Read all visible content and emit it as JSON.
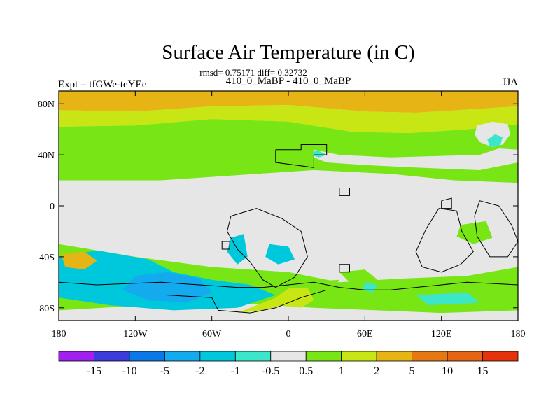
{
  "chart_data": {
    "type": "heatmap",
    "title": "Surface Air Temperature (in C)",
    "stats": "rmsd= 0.75171 diff= 0.32732",
    "case_label": "410_0_MaBP - 410_0_MaBP",
    "expt_label": "Expt = tfGWe-teYEe",
    "season": "JJA",
    "projection": "cylindrical equidistant",
    "xlim": [
      -180,
      180
    ],
    "ylim": [
      -90,
      90
    ],
    "x_ticks": [
      {
        "value": -180,
        "label": "180"
      },
      {
        "value": -120,
        "label": "120W"
      },
      {
        "value": -60,
        "label": "60W"
      },
      {
        "value": 0,
        "label": "0"
      },
      {
        "value": 60,
        "label": "60E"
      },
      {
        "value": 120,
        "label": "120E"
      },
      {
        "value": 180,
        "label": "180"
      }
    ],
    "y_ticks": [
      {
        "value": 80,
        "label": "80N"
      },
      {
        "value": 40,
        "label": "40N"
      },
      {
        "value": 0,
        "label": "0"
      },
      {
        "value": -40,
        "label": "40S"
      },
      {
        "value": -80,
        "label": "80S"
      }
    ],
    "colorbar": {
      "levels": [
        -15,
        -10,
        -5,
        -2,
        -1,
        -0.5,
        0.5,
        1,
        2,
        5,
        10,
        15
      ],
      "labels": [
        "-15",
        "-10",
        "-5",
        "-2",
        "-1",
        "-0.5",
        "0.5",
        "1",
        "2",
        "5",
        "10",
        "15"
      ],
      "colors": [
        "#a020f0",
        "#3c3cdc",
        "#0a78e6",
        "#14aaee",
        "#00c8dc",
        "#3ce6c8",
        "#e6e6e6",
        "#78e614",
        "#c8e614",
        "#e6b414",
        "#e67814",
        "#e66414",
        "#e6320a"
      ]
    },
    "regions": [
      {
        "bin": 9,
        "pts": [
          [
            -180,
            90
          ],
          [
            180,
            90
          ],
          [
            180,
            78
          ],
          [
            100,
            73
          ],
          [
            60,
            74
          ],
          [
            0,
            79
          ],
          [
            -60,
            78
          ],
          [
            -120,
            74
          ],
          [
            -180,
            75
          ]
        ]
      },
      {
        "bin": 8,
        "pts": [
          [
            -180,
            75
          ],
          [
            -120,
            74
          ],
          [
            -60,
            78
          ],
          [
            0,
            79
          ],
          [
            60,
            74
          ],
          [
            100,
            73
          ],
          [
            180,
            78
          ],
          [
            180,
            64
          ],
          [
            140,
            60
          ],
          [
            95,
            57
          ],
          [
            50,
            58
          ],
          [
            0,
            66
          ],
          [
            -60,
            68
          ],
          [
            -120,
            63
          ],
          [
            -180,
            62
          ]
        ]
      },
      {
        "bin": 7,
        "pts": [
          [
            -180,
            62
          ],
          [
            -120,
            63
          ],
          [
            -60,
            68
          ],
          [
            0,
            66
          ],
          [
            50,
            58
          ],
          [
            95,
            57
          ],
          [
            140,
            60
          ],
          [
            180,
            64
          ],
          [
            180,
            18
          ],
          [
            130,
            20
          ],
          [
            80,
            25
          ],
          [
            20,
            28
          ],
          [
            -40,
            24
          ],
          [
            -100,
            20
          ],
          [
            -180,
            20
          ]
        ]
      },
      {
        "bin": 6,
        "pts": [
          [
            -180,
            20
          ],
          [
            -100,
            20
          ],
          [
            -40,
            24
          ],
          [
            20,
            28
          ],
          [
            80,
            25
          ],
          [
            130,
            20
          ],
          [
            180,
            18
          ],
          [
            180,
            -48
          ],
          [
            140,
            -55
          ],
          [
            90,
            -57
          ],
          [
            40,
            -60
          ],
          [
            0,
            -52
          ],
          [
            -60,
            -48
          ],
          [
            -120,
            -40
          ],
          [
            -180,
            -30
          ]
        ]
      },
      {
        "bin": 7,
        "pts": [
          [
            -180,
            -30
          ],
          [
            -120,
            -40
          ],
          [
            -60,
            -48
          ],
          [
            0,
            -52
          ],
          [
            40,
            -60
          ],
          [
            90,
            -57
          ],
          [
            140,
            -55
          ],
          [
            180,
            -48
          ],
          [
            180,
            -90
          ],
          [
            -180,
            -90
          ]
        ]
      },
      {
        "bin": 6,
        "pts": [
          [
            -180,
            -82
          ],
          [
            -60,
            -75
          ],
          [
            20,
            -80
          ],
          [
            120,
            -84
          ],
          [
            180,
            -82
          ],
          [
            180,
            -90
          ],
          [
            -180,
            -90
          ]
        ]
      },
      {
        "bin": 6,
        "pts": [
          [
            20,
            44
          ],
          [
            40,
            40
          ],
          [
            80,
            38
          ],
          [
            150,
            40
          ],
          [
            165,
            45
          ],
          [
            180,
            44
          ],
          [
            180,
            34
          ],
          [
            150,
            28
          ],
          [
            100,
            30
          ],
          [
            60,
            32
          ],
          [
            30,
            34
          ],
          [
            20,
            38
          ]
        ]
      },
      {
        "bin": 6,
        "pts": [
          [
            148,
            63
          ],
          [
            160,
            66
          ],
          [
            172,
            64
          ],
          [
            174,
            56
          ],
          [
            168,
            48
          ],
          [
            160,
            46
          ],
          [
            150,
            50
          ],
          [
            146,
            56
          ]
        ]
      },
      {
        "bin": 5,
        "pts": [
          [
            156,
            52
          ],
          [
            162,
            56
          ],
          [
            168,
            54
          ],
          [
            166,
            47
          ],
          [
            158,
            46
          ]
        ]
      },
      {
        "bin": 5,
        "pts": [
          [
            22,
            44
          ],
          [
            30,
            40
          ],
          [
            24,
            38
          ],
          [
            18,
            40
          ]
        ]
      },
      {
        "bin": 4,
        "pts": [
          [
            -180,
            -40
          ],
          [
            -150,
            -35
          ],
          [
            -110,
            -42
          ],
          [
            -90,
            -52
          ],
          [
            -60,
            -58
          ],
          [
            -30,
            -62
          ],
          [
            -10,
            -70
          ],
          [
            -40,
            -80
          ],
          [
            -90,
            -82
          ],
          [
            -140,
            -78
          ],
          [
            -180,
            -72
          ]
        ]
      },
      {
        "bin": 3,
        "pts": [
          [
            -120,
            -55
          ],
          [
            -95,
            -52
          ],
          [
            -70,
            -57
          ],
          [
            -60,
            -68
          ],
          [
            -80,
            -76
          ],
          [
            -110,
            -74
          ],
          [
            -130,
            -66
          ]
        ]
      },
      {
        "bin": 9,
        "pts": [
          [
            -178,
            -38
          ],
          [
            -160,
            -36
          ],
          [
            -150,
            -43
          ],
          [
            -160,
            -50
          ],
          [
            -175,
            -48
          ]
        ]
      },
      {
        "bin": 4,
        "pts": [
          [
            -45,
            -25
          ],
          [
            -35,
            -22
          ],
          [
            -32,
            -40
          ],
          [
            -40,
            -46
          ],
          [
            -48,
            -36
          ]
        ]
      },
      {
        "bin": 4,
        "pts": [
          [
            -15,
            -30
          ],
          [
            0,
            -32
          ],
          [
            5,
            -42
          ],
          [
            -8,
            -46
          ],
          [
            -18,
            -40
          ]
        ]
      },
      {
        "bin": 7,
        "pts": [
          [
            135,
            -15
          ],
          [
            155,
            -12
          ],
          [
            160,
            -25
          ],
          [
            145,
            -30
          ],
          [
            132,
            -24
          ]
        ]
      },
      {
        "bin": 7,
        "pts": [
          [
            40,
            -52
          ],
          [
            60,
            -50
          ],
          [
            70,
            -58
          ],
          [
            50,
            -62
          ]
        ]
      },
      {
        "bin": 5,
        "pts": [
          [
            60,
            -60
          ],
          [
            70,
            -62
          ],
          [
            66,
            -68
          ],
          [
            58,
            -66
          ]
        ]
      },
      {
        "bin": 7,
        "pts": [
          [
            10,
            -60
          ],
          [
            40,
            -58
          ],
          [
            30,
            -72
          ],
          [
            5,
            -75
          ],
          [
            -5,
            -68
          ]
        ]
      },
      {
        "bin": 8,
        "pts": [
          [
            0,
            -65
          ],
          [
            15,
            -64
          ],
          [
            20,
            -74
          ],
          [
            10,
            -80
          ],
          [
            -5,
            -78
          ],
          [
            -20,
            -82
          ],
          [
            -40,
            -84
          ],
          [
            -10,
            -72
          ]
        ]
      },
      {
        "bin": 5,
        "pts": [
          [
            100,
            -70
          ],
          [
            140,
            -68
          ],
          [
            150,
            -76
          ],
          [
            110,
            -78
          ]
        ]
      }
    ],
    "land_outlines": [
      {
        "name": "north-land-1",
        "pts": [
          [
            -10,
            44
          ],
          [
            10,
            44
          ],
          [
            10,
            48
          ],
          [
            30,
            48
          ],
          [
            30,
            40
          ],
          [
            20,
            40
          ],
          [
            20,
            30
          ],
          [
            -10,
            34
          ],
          [
            -10,
            38
          ]
        ]
      },
      {
        "name": "north-land-2",
        "pts": [
          [
            40,
            14
          ],
          [
            48,
            14
          ],
          [
            48,
            8
          ],
          [
            40,
            8
          ]
        ]
      },
      {
        "name": "south-land-1",
        "pts": [
          [
            -45,
            -8
          ],
          [
            -25,
            -2
          ],
          [
            -5,
            -10
          ],
          [
            10,
            -20
          ],
          [
            15,
            -40
          ],
          [
            5,
            -56
          ],
          [
            -10,
            -64
          ],
          [
            -20,
            -58
          ],
          [
            -30,
            -44
          ],
          [
            -40,
            -34
          ],
          [
            -48,
            -20
          ]
        ]
      },
      {
        "name": "south-land-2",
        "pts": [
          [
            -52,
            -28
          ],
          [
            -46,
            -28
          ],
          [
            -46,
            -34
          ],
          [
            -52,
            -34
          ]
        ]
      },
      {
        "name": "south-land-3",
        "pts": [
          [
            40,
            -46
          ],
          [
            48,
            -46
          ],
          [
            48,
            -52
          ],
          [
            40,
            -52
          ]
        ]
      },
      {
        "name": "south-land-4",
        "pts": [
          [
            118,
            -2
          ],
          [
            132,
            -4
          ],
          [
            136,
            -20
          ],
          [
            145,
            -36
          ],
          [
            135,
            -46
          ],
          [
            120,
            -52
          ],
          [
            105,
            -48
          ],
          [
            100,
            -36
          ],
          [
            108,
            -18
          ]
        ]
      },
      {
        "name": "south-land-5",
        "pts": [
          [
            150,
            4
          ],
          [
            165,
            0
          ],
          [
            175,
            -15
          ],
          [
            180,
            -28
          ],
          [
            172,
            -40
          ],
          [
            158,
            -40
          ],
          [
            148,
            -24
          ],
          [
            146,
            -8
          ]
        ]
      },
      {
        "name": "south-land-6",
        "pts": [
          [
            120,
            4
          ],
          [
            128,
            6
          ],
          [
            128,
            -2
          ],
          [
            120,
            -2
          ]
        ]
      },
      {
        "name": "antarctic-1",
        "pts": [
          [
            -180,
            -60
          ],
          [
            -150,
            -62
          ],
          [
            -100,
            -60
          ],
          [
            -70,
            -62
          ],
          [
            -40,
            -64
          ],
          [
            -20,
            -64
          ],
          [
            0,
            -62
          ],
          [
            20,
            -60
          ],
          [
            40,
            -64
          ],
          [
            60,
            -66
          ],
          [
            80,
            -66
          ],
          [
            100,
            -64
          ],
          [
            120,
            -62
          ],
          [
            140,
            -60
          ],
          [
            180,
            -62
          ]
        ]
      },
      {
        "name": "antarctic-2",
        "pts": [
          [
            -95,
            -70
          ],
          [
            -60,
            -72
          ],
          [
            -55,
            -82
          ],
          [
            -30,
            -84
          ],
          [
            -10,
            -80
          ],
          [
            10,
            -72
          ],
          [
            30,
            -66
          ]
        ]
      }
    ]
  }
}
